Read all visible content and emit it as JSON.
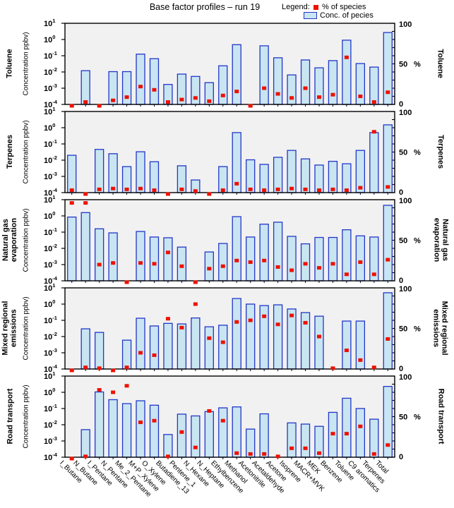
{
  "chart_data": {
    "type": "bar",
    "title": "Base factor profiles – run 19",
    "legend": {
      "title": "Legend:",
      "items": [
        {
          "swatch": "red-square",
          "label": "% of species"
        },
        {
          "swatch": "blue-bar",
          "label": "Conc. of  pecies"
        }
      ]
    },
    "categories": [
      "I_Butane",
      "N_Butane",
      "I_Pentane",
      "N_Pentane",
      "Me_2_Pentane",
      "M+P_Xylene",
      "O_Xylene",
      "Butadiene_13",
      "Pentene_1",
      "N_Hexane",
      "N_Heptane",
      "Ethylbenzene",
      "Methanol",
      "Acetonitrile",
      "Acetaldehyde",
      "Acetone",
      "Isoprene",
      "MACR+MVK",
      "MEK",
      "Benzene",
      "Toluene",
      "C9 aromatics",
      "Terpenes",
      "Total"
    ],
    "y_left": {
      "label": "Concentration ppbv)",
      "scale": "log",
      "tick_exponents": [
        1,
        0,
        -1,
        -2,
        -3,
        -4
      ],
      "range": [
        0.0001,
        10
      ]
    },
    "y_right": {
      "label": "%",
      "ticks": [
        100,
        50,
        0
      ],
      "minor_step": 10,
      "range": [
        0,
        100
      ]
    },
    "panels": [
      {
        "name": "Toluene",
        "name_lines": [
          "Toluene"
        ],
        "conc_ppbv": [
          null,
          0.012,
          null,
          0.0105,
          0.0105,
          0.126,
          0.066,
          0.0017,
          0.0074,
          0.0053,
          0.0022,
          0.024,
          0.48,
          null,
          0.41,
          0.075,
          0.0066,
          0.055,
          0.018,
          0.05,
          0.91,
          0.033,
          0.02,
          2.7
        ],
        "pct_of_species": [
          0,
          3,
          0,
          5,
          9,
          22,
          18,
          3,
          6,
          8,
          4,
          11,
          16,
          0,
          20,
          13,
          8,
          20,
          9,
          12,
          58,
          10,
          3,
          15
        ]
      },
      {
        "name": "Terpenes",
        "name_lines": [
          "Terpenes"
        ],
        "conc_ppbv": [
          0.02,
          null,
          0.046,
          0.025,
          0.004,
          0.033,
          0.008,
          null,
          0.0045,
          0.0006,
          null,
          0.004,
          0.5,
          0.0105,
          0.0055,
          0.015,
          0.04,
          0.012,
          0.005,
          0.0085,
          0.006,
          0.04,
          0.5,
          1.5
        ],
        "pct_of_species": [
          3,
          0,
          4,
          5,
          4,
          5,
          3,
          0,
          4,
          2,
          0,
          3,
          11,
          4,
          3,
          4,
          5,
          4,
          3,
          4,
          3,
          6,
          75,
          7
        ]
      },
      {
        "name": "Natural gas evaporation",
        "name_lines": [
          "Natural gas",
          "evaporation"
        ],
        "conc_ppbv": [
          0.85,
          1.6,
          0.16,
          0.09,
          null,
          0.11,
          0.05,
          0.045,
          0.012,
          null,
          0.006,
          0.02,
          0.9,
          0.05,
          0.31,
          0.41,
          0.055,
          0.019,
          0.047,
          0.047,
          0.14,
          0.059,
          0.05,
          4.5
        ],
        "pct_of_species": [
          96,
          96,
          20,
          22,
          0,
          22,
          21,
          35,
          18,
          0,
          15,
          18,
          25,
          23,
          25,
          17,
          13,
          21,
          16,
          21,
          8,
          23,
          8,
          26
        ]
      },
      {
        "name": "Mixed regional emissions",
        "name_lines": [
          "Mixed regional",
          "emissions"
        ],
        "conc_ppbv": [
          null,
          0.03,
          0.018,
          null,
          0.006,
          0.135,
          0.045,
          0.065,
          0.06,
          0.14,
          0.04,
          0.05,
          2.2,
          1.0,
          0.81,
          0.9,
          0.5,
          0.3,
          0.18,
          null,
          0.09,
          0.09,
          null,
          5.0
        ],
        "pct_of_species": [
          0,
          2,
          1,
          0,
          2,
          20,
          17,
          62,
          51,
          80,
          38,
          33,
          58,
          60,
          65,
          55,
          66,
          57,
          40,
          1,
          23,
          11,
          2,
          37
        ]
      },
      {
        "name": "Road transport",
        "name_lines": [
          "Road transport"
        ],
        "conc_ppbv": [
          null,
          0.005,
          1.05,
          0.35,
          0.2,
          0.3,
          0.16,
          0.0025,
          0.045,
          0.035,
          0.065,
          0.11,
          0.126,
          0.0054,
          0.047,
          null,
          0.013,
          0.011,
          0.008,
          0.058,
          0.43,
          0.1,
          0.022,
          2.3
        ],
        "pct_of_species": [
          0,
          1,
          83,
          80,
          88,
          43,
          45,
          1,
          31,
          12,
          57,
          45,
          5,
          4,
          4,
          1,
          11,
          11,
          5,
          29,
          29,
          38,
          4,
          15
        ]
      }
    ]
  },
  "colors": {
    "bar_fill": "#c8e5f1",
    "bar_stroke": "#2336c9",
    "marker": "#ee1100",
    "plot_bg": "#f1f1f1",
    "frame": "#000000"
  }
}
